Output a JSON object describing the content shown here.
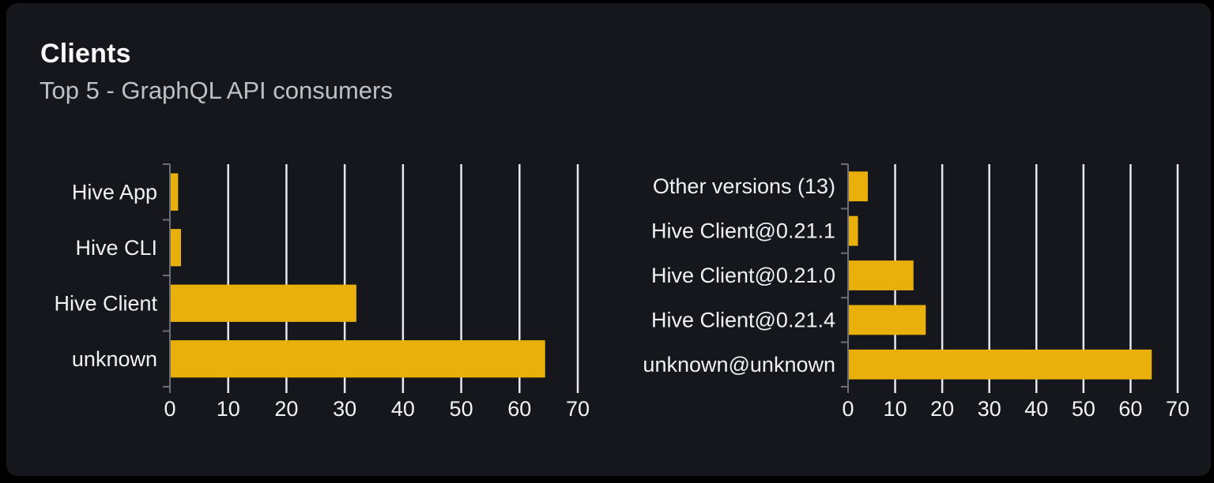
{
  "header": {
    "title": "Clients",
    "subtitle": "Top 5 - GraphQL API consumers"
  },
  "colors": {
    "page_bg": "#000000",
    "card_bg": "#15171C",
    "title": "#FAFAFA",
    "subtitle": "#BDC0C5",
    "bar": "#E9B00C",
    "grid": "#E6E8EF",
    "axis": "#6B6E76",
    "category_label": "#F0F1F3",
    "tick_label": "#F2F3F5"
  },
  "chart_data": [
    {
      "type": "bar",
      "orientation": "horizontal",
      "name": "clients",
      "title": "",
      "categories": [
        "Hive App",
        "Hive CLI",
        "Hive Client",
        "unknown"
      ],
      "values": [
        1.4,
        1.9,
        32,
        64.4
      ],
      "category_order": "top-to-bottom",
      "xlabel": "",
      "ylabel": "",
      "xlim": [
        0,
        70
      ],
      "xticks": [
        0,
        10,
        20,
        30,
        40,
        50,
        60,
        70
      ],
      "grid": true,
      "legend": false
    },
    {
      "type": "bar",
      "orientation": "horizontal",
      "name": "client-versions",
      "title": "",
      "categories": [
        "Other versions (13)",
        "Hive Client@0.21.1",
        "Hive Client@0.21.0",
        "Hive Client@0.21.4",
        "unknown@unknown"
      ],
      "values": [
        4.2,
        2.1,
        13.9,
        16.5,
        64.5
      ],
      "category_order": "top-to-bottom",
      "xlabel": "",
      "ylabel": "",
      "xlim": [
        0,
        70
      ],
      "xticks": [
        0,
        10,
        20,
        30,
        40,
        50,
        60,
        70
      ],
      "grid": true,
      "legend": false
    }
  ]
}
